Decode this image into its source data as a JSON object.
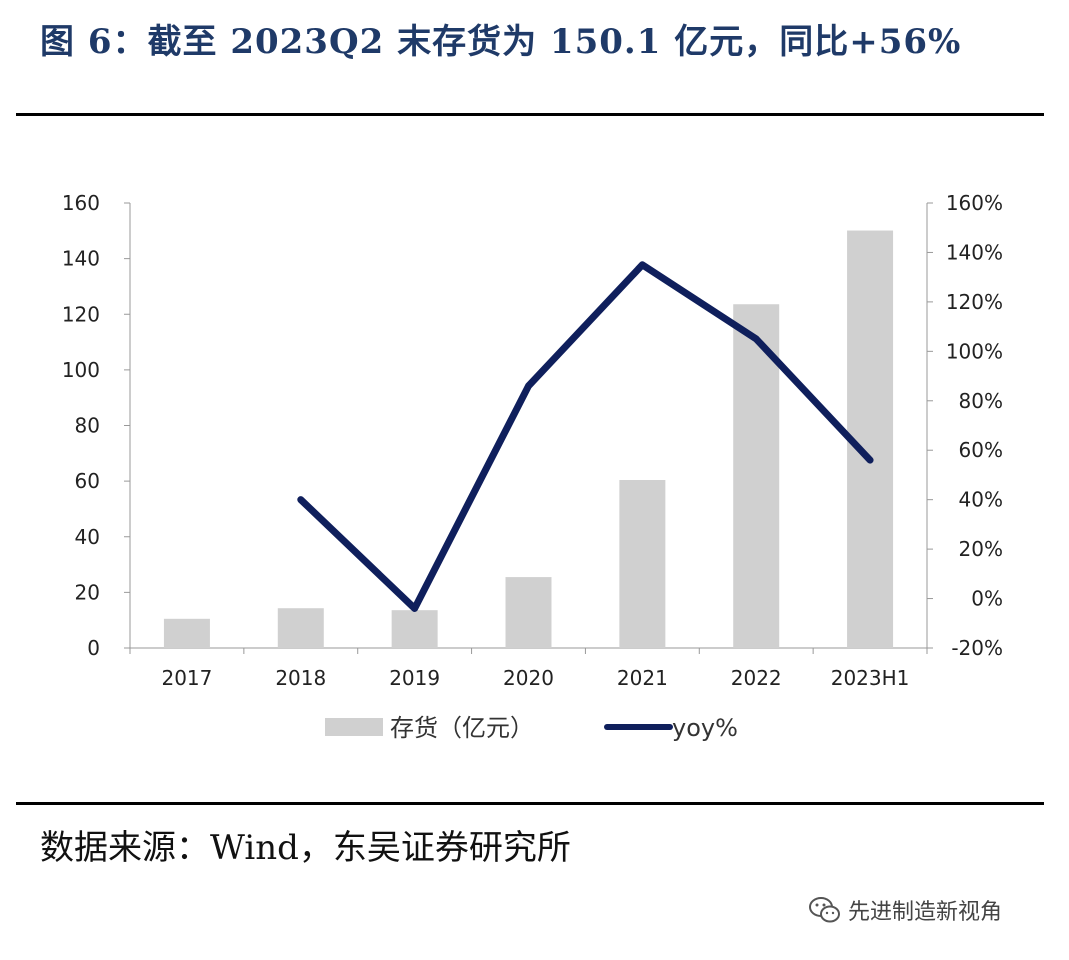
{
  "header": {
    "title": "图 6：截至 2023Q2 末存货为 150.1 亿元，同比+56%"
  },
  "footer": {
    "source": "数据来源：Wind，东吴证券研究所",
    "watermark": "先进制造新视角",
    "watermark_icon": "wechat-icon"
  },
  "colors": {
    "bar": "#d0d0d0",
    "line": "#0f1f5c",
    "axis": "#999999"
  },
  "chart_data": {
    "type": "bar",
    "categories": [
      "2017",
      "2018",
      "2019",
      "2020",
      "2021",
      "2022",
      "2023H1"
    ],
    "series": [
      {
        "name": "存货（亿元）",
        "type": "bar",
        "axis": "left",
        "values": [
          10.5,
          14.3,
          13.6,
          25.5,
          60.4,
          123.6,
          150.1
        ]
      },
      {
        "name": "yoy%",
        "type": "line",
        "axis": "right",
        "values": [
          null,
          40,
          -4,
          86,
          135,
          105,
          56
        ]
      }
    ],
    "y_left": {
      "ticks": [
        "0",
        "20",
        "40",
        "60",
        "80",
        "100",
        "120",
        "140",
        "160"
      ],
      "lim": [
        0,
        160
      ]
    },
    "y_right": {
      "ticks": [
        "-20%",
        "0%",
        "20%",
        "40%",
        "60%",
        "80%",
        "100%",
        "120%",
        "140%",
        "160%"
      ],
      "lim": [
        -20,
        160
      ]
    },
    "legend": "bottom",
    "grid": false
  }
}
